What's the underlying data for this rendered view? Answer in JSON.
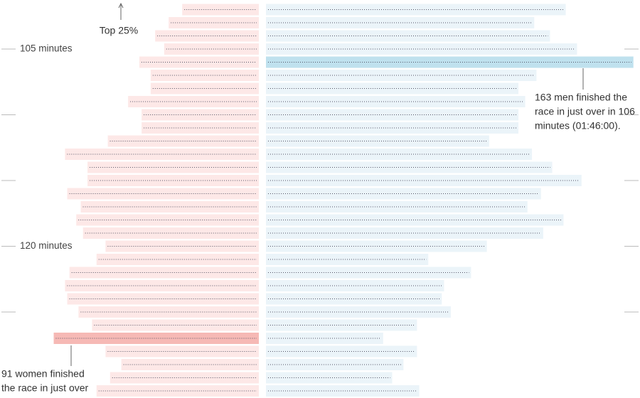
{
  "chart_data": {
    "type": "butterfly",
    "x": [
      102,
      103,
      104,
      105,
      106,
      107,
      108,
      109,
      110,
      111,
      112,
      113,
      114,
      115,
      116,
      117,
      118,
      119,
      120,
      121,
      122,
      123,
      124,
      125,
      126,
      127,
      128,
      129,
      130,
      131
    ],
    "series": [
      {
        "name": "women",
        "side": "left",
        "color": "#fde8e7",
        "highlight_color": "#f6b9b5",
        "highlight": "max",
        "values": [
          34,
          40,
          46,
          42,
          53,
          48,
          48,
          58,
          52,
          52,
          67,
          86,
          76,
          76,
          85,
          79,
          81,
          78,
          68,
          72,
          84,
          86,
          85,
          80,
          74,
          91,
          68,
          61,
          66,
          72
        ]
      },
      {
        "name": "men",
        "side": "right",
        "color": "#ebf4f9",
        "highlight_color": "#bfe1ee",
        "highlight": "max",
        "values": [
          133,
          119,
          126,
          138,
          163,
          120,
          112,
          115,
          112,
          112,
          99,
          118,
          127,
          140,
          122,
          116,
          132,
          123,
          98,
          72,
          91,
          79,
          78,
          82,
          67,
          52,
          67,
          61,
          56,
          68
        ]
      }
    ],
    "yticks": [
      {
        "value": 105,
        "label": "105 minutes"
      },
      110,
      115,
      {
        "value": 120,
        "label": "120 minutes"
      },
      125
    ],
    "annotations": [
      {
        "name": "top",
        "lines": [
          "Top 25%"
        ]
      },
      {
        "name": "men",
        "lines": [
          "163 men finished the",
          "race in just over in 106",
          "minutes (01:46:00)."
        ]
      },
      {
        "name": "women",
        "lines": [
          "91 women finished",
          "the race in just over"
        ]
      }
    ]
  }
}
